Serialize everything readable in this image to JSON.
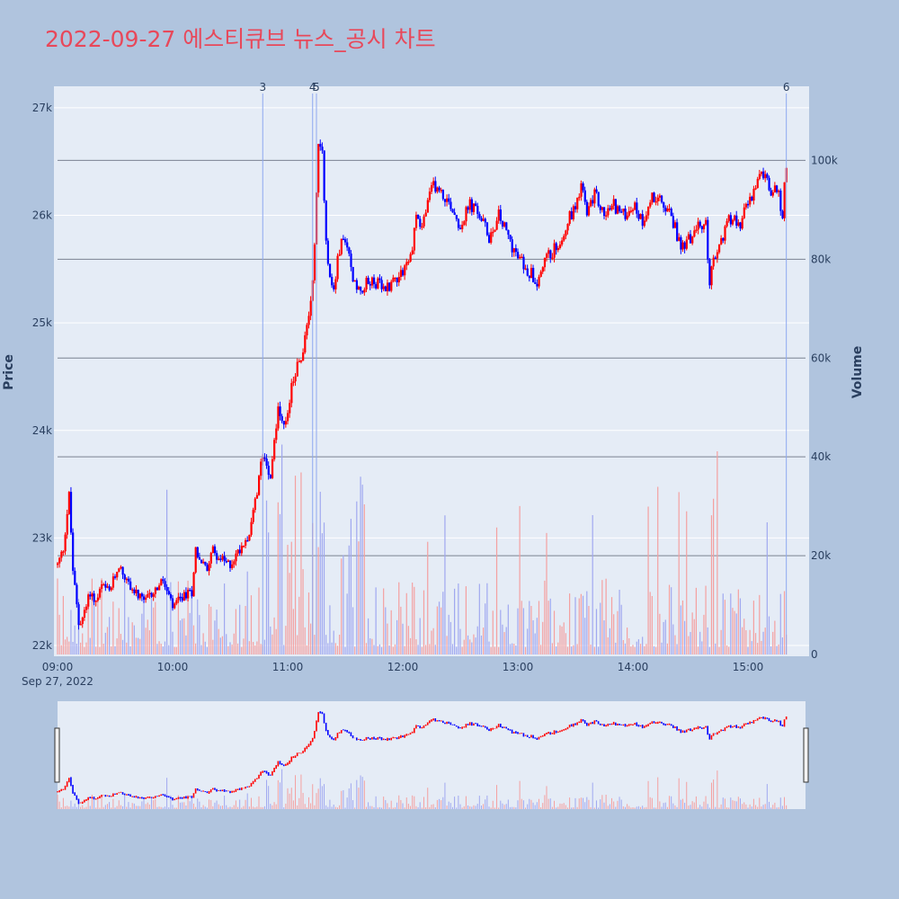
{
  "chart_data": {
    "type": "candlestick",
    "title": "2022-09-27 에스티큐브 뉴스_공시 차트",
    "y_axis_left": {
      "label": "Price",
      "range": [
        21900,
        27200
      ],
      "ticks": [
        22000,
        23000,
        24000,
        25000,
        26000,
        27000
      ],
      "tick_labels": [
        "22k",
        "23k",
        "24k",
        "25k",
        "26k",
        "27k"
      ]
    },
    "y_axis_right": {
      "label": "Volume",
      "range": [
        0,
        115000
      ],
      "ticks": [
        0,
        20000,
        40000,
        60000,
        80000,
        100000
      ],
      "tick_labels": [
        "0",
        "20k",
        "40k",
        "60k",
        "80k",
        "100k"
      ]
    },
    "x_axis": {
      "ticks": [
        "09:00",
        "10:00",
        "11:00",
        "12:00",
        "13:00",
        "14:00",
        "15:00"
      ],
      "date_label": "Sep 27, 2022",
      "range": [
        "09:00",
        "15:30"
      ]
    },
    "colors": {
      "up": "#ff0000",
      "down": "#0000ff",
      "up_volume": "#f4a0a0",
      "down_volume": "#a0a8f0",
      "event_line": "#8ea8f0"
    },
    "events": [
      {
        "label": "3",
        "time": "10:47"
      },
      {
        "label": "4",
        "time": "11:13"
      },
      {
        "label": "5",
        "time": "11:15"
      },
      {
        "label": "6",
        "time": "15:20"
      }
    ],
    "price_path": [
      [
        "09:00",
        22750
      ],
      [
        "09:03",
        22900
      ],
      [
        "09:06",
        23400
      ],
      [
        "09:08",
        22700
      ],
      [
        "09:11",
        22200
      ],
      [
        "09:14",
        22300
      ],
      [
        "09:17",
        22500
      ],
      [
        "09:20",
        22400
      ],
      [
        "09:23",
        22550
      ],
      [
        "09:27",
        22500
      ],
      [
        "09:32",
        22750
      ],
      [
        "09:36",
        22600
      ],
      [
        "09:40",
        22500
      ],
      [
        "09:45",
        22400
      ],
      [
        "09:50",
        22500
      ],
      [
        "09:55",
        22600
      ],
      [
        "10:00",
        22350
      ],
      [
        "10:05",
        22450
      ],
      [
        "10:10",
        22500
      ],
      [
        "10:12",
        22900
      ],
      [
        "10:14",
        22800
      ],
      [
        "10:18",
        22700
      ],
      [
        "10:20",
        22900
      ],
      [
        "10:25",
        22800
      ],
      [
        "10:30",
        22750
      ],
      [
        "10:35",
        22900
      ],
      [
        "10:40",
        23050
      ],
      [
        "10:44",
        23400
      ],
      [
        "10:47",
        23800
      ],
      [
        "10:51",
        23600
      ],
      [
        "10:55",
        24200
      ],
      [
        "10:58",
        24000
      ],
      [
        "11:00",
        24100
      ],
      [
        "11:02",
        24450
      ],
      [
        "11:05",
        24600
      ],
      [
        "11:08",
        24700
      ],
      [
        "11:10",
        25000
      ],
      [
        "11:12",
        25200
      ],
      [
        "11:14",
        25700
      ],
      [
        "11:16",
        26700
      ],
      [
        "11:18",
        26600
      ],
      [
        "11:20",
        25800
      ],
      [
        "11:22",
        25400
      ],
      [
        "11:24",
        25300
      ],
      [
        "11:27",
        25700
      ],
      [
        "11:30",
        25800
      ],
      [
        "11:33",
        25500
      ],
      [
        "11:36",
        25300
      ],
      [
        "11:40",
        25350
      ],
      [
        "11:45",
        25400
      ],
      [
        "11:50",
        25300
      ],
      [
        "11:55",
        25400
      ],
      [
        "12:00",
        25500
      ],
      [
        "12:04",
        25600
      ],
      [
        "12:07",
        26000
      ],
      [
        "12:10",
        25900
      ],
      [
        "12:13",
        26100
      ],
      [
        "12:16",
        26300
      ],
      [
        "12:20",
        26200
      ],
      [
        "12:25",
        26100
      ],
      [
        "12:30",
        25900
      ],
      [
        "12:35",
        26100
      ],
      [
        "12:40",
        26000
      ],
      [
        "12:45",
        25800
      ],
      [
        "12:50",
        26000
      ],
      [
        "12:55",
        25800
      ],
      [
        "13:00",
        25600
      ],
      [
        "13:05",
        25500
      ],
      [
        "13:10",
        25400
      ],
      [
        "13:15",
        25600
      ],
      [
        "13:20",
        25700
      ],
      [
        "13:25",
        25900
      ],
      [
        "13:30",
        26100
      ],
      [
        "13:33",
        26300
      ],
      [
        "13:36",
        26000
      ],
      [
        "13:40",
        26200
      ],
      [
        "13:45",
        26000
      ],
      [
        "13:50",
        26100
      ],
      [
        "13:55",
        26000
      ],
      [
        "14:00",
        26100
      ],
      [
        "14:05",
        25950
      ],
      [
        "14:10",
        26200
      ],
      [
        "14:15",
        26100
      ],
      [
        "14:20",
        26000
      ],
      [
        "14:25",
        25700
      ],
      [
        "14:30",
        25800
      ],
      [
        "14:35",
        25900
      ],
      [
        "14:38",
        25900
      ],
      [
        "14:40",
        25400
      ],
      [
        "14:42",
        25550
      ],
      [
        "14:45",
        25700
      ],
      [
        "14:50",
        26000
      ],
      [
        "14:55",
        25900
      ],
      [
        "15:00",
        26100
      ],
      [
        "15:05",
        26300
      ],
      [
        "15:08",
        26400
      ],
      [
        "15:12",
        26200
      ],
      [
        "15:15",
        26250
      ],
      [
        "15:18",
        26000
      ],
      [
        "15:20",
        26500
      ]
    ]
  }
}
